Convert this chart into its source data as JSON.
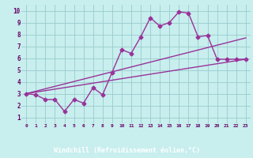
{
  "title": "",
  "xlabel": "Windchill (Refroidissement éolien,°C)",
  "ylabel": "",
  "background_color": "#c8eeee",
  "grid_color": "#99cccc",
  "line_color": "#993399",
  "label_band_color": "#660066",
  "label_text_color": "#ffffff",
  "tick_color": "#660066",
  "x_ticks": [
    0,
    1,
    2,
    3,
    4,
    5,
    6,
    7,
    8,
    9,
    10,
    11,
    12,
    13,
    14,
    15,
    16,
    17,
    18,
    19,
    20,
    21,
    22,
    23
  ],
  "y_ticks": [
    1,
    2,
    3,
    4,
    5,
    6,
    7,
    8,
    9,
    10
  ],
  "xlim": [
    -0.5,
    23.5
  ],
  "ylim": [
    0.5,
    10.5
  ],
  "line1_x": [
    0,
    1,
    2,
    3,
    4,
    5,
    6,
    7,
    8,
    9,
    10,
    11,
    12,
    13,
    14,
    15,
    16,
    17,
    18,
    19,
    20,
    21,
    22,
    23
  ],
  "line1_y": [
    3.0,
    2.9,
    2.5,
    2.5,
    1.5,
    2.5,
    2.2,
    3.5,
    2.9,
    4.8,
    6.7,
    6.4,
    7.8,
    9.4,
    8.7,
    9.0,
    9.9,
    9.8,
    7.8,
    7.9,
    5.9,
    5.9,
    5.9,
    5.9
  ],
  "line2_x": [
    0,
    23
  ],
  "line2_y": [
    3.0,
    5.9
  ],
  "line3_x": [
    0,
    23
  ],
  "line3_y": [
    3.0,
    7.7
  ],
  "marker": "D",
  "marker_size": 2.5,
  "line_width": 1.0
}
